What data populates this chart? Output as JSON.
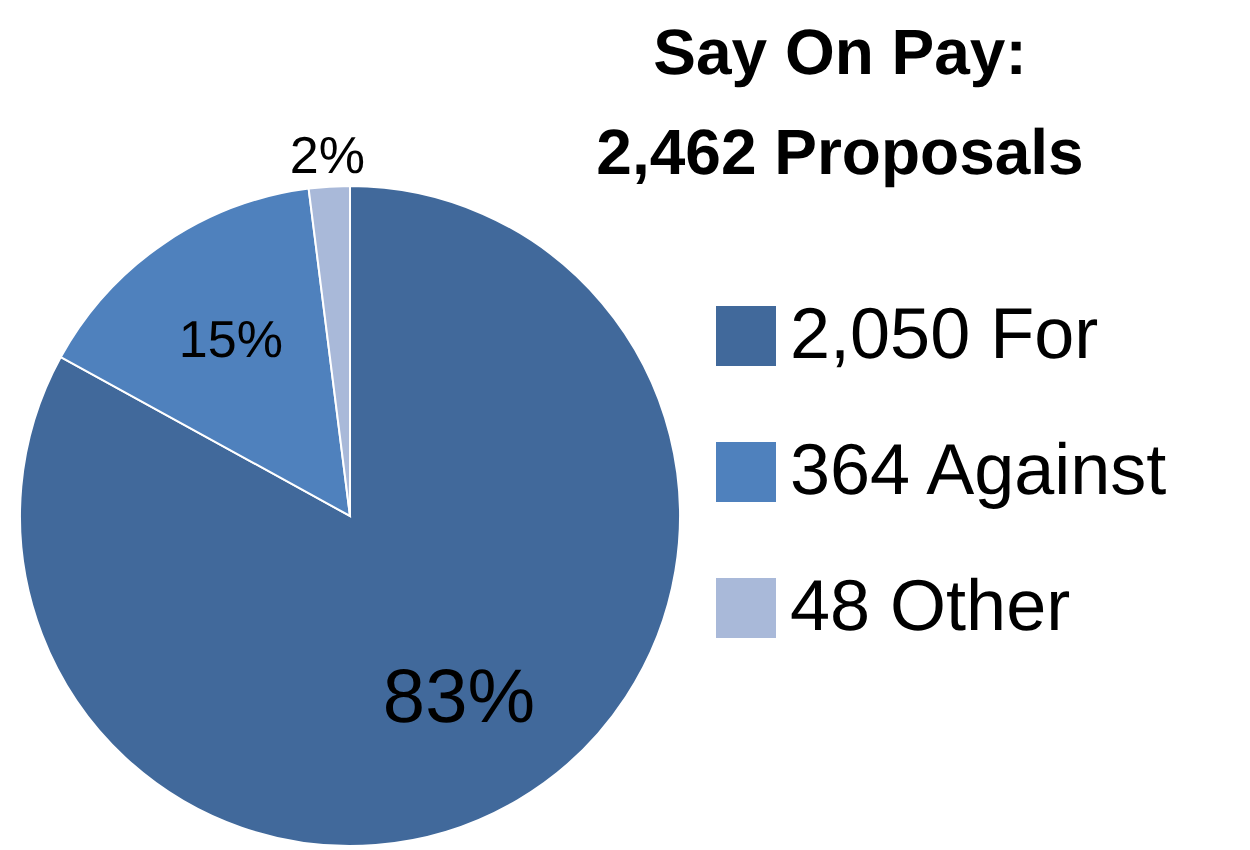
{
  "chart_data": {
    "type": "pie",
    "title": "Say On Pay:\n2,462 Proposals",
    "categories": [
      "2,050 For",
      "364 Against",
      "48 Other"
    ],
    "values": [
      83,
      15,
      2
    ],
    "colors": [
      "#41699b",
      "#4f81bd",
      "#a9b9d9"
    ],
    "value_labels": [
      "83%",
      "15%",
      "2%"
    ],
    "legend": "right"
  }
}
